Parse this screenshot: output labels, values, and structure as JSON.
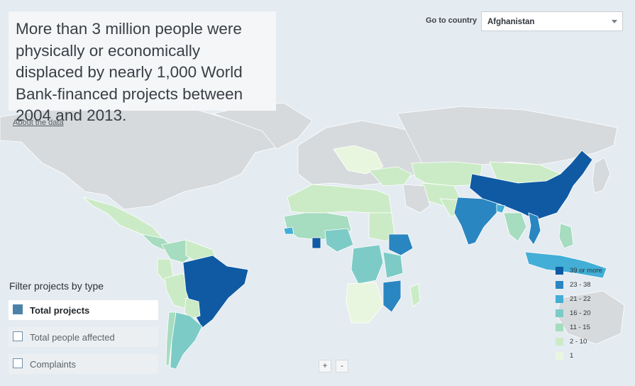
{
  "headline": "More than 3 million people were physically or economically displaced by nearly 1,000 World Bank-financed projects between 2004 and 2013.",
  "about_link": "About the data",
  "goto": {
    "label": "Go to country",
    "selected": "Afghanistan"
  },
  "filters": {
    "title": "Filter projects by type",
    "options": [
      {
        "label": "Total projects",
        "selected": true
      },
      {
        "label": "Total people affected",
        "selected": false
      },
      {
        "label": "Complaints",
        "selected": false
      }
    ]
  },
  "zoom": {
    "in": "+",
    "out": "-"
  },
  "legend": [
    {
      "label": "39 or more",
      "color": "#0f5aa3"
    },
    {
      "label": "23 - 38",
      "color": "#2a86c1"
    },
    {
      "label": "21 - 22",
      "color": "#43aed6"
    },
    {
      "label": "16 - 20",
      "color": "#7dcbc6"
    },
    {
      "label": "11 - 15",
      "color": "#a6dcbf"
    },
    {
      "label": "2 - 10",
      "color": "#cbebc6"
    },
    {
      "label": "1",
      "color": "#e9f6df"
    }
  ],
  "colors": {
    "ocean": "#e4ebf1",
    "no_data": "#d6dadd"
  }
}
